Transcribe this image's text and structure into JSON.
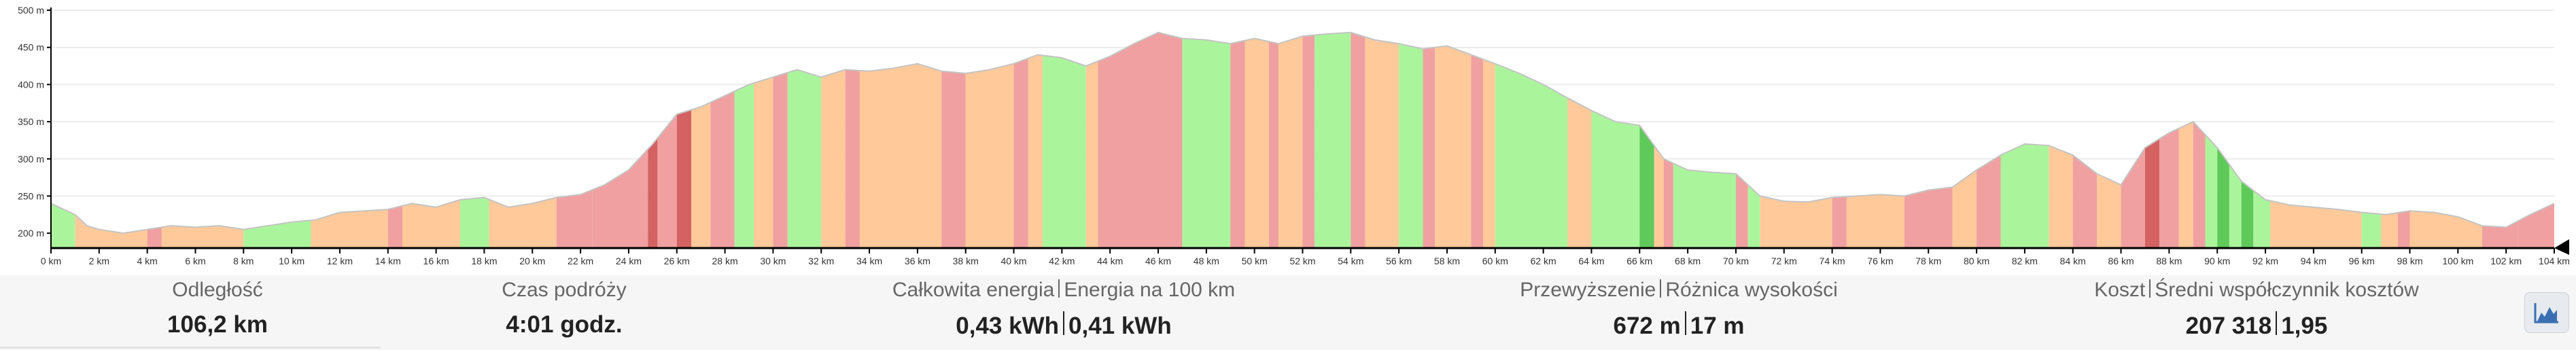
{
  "stats": [
    {
      "label": "Odległość",
      "values": [
        "106,2 km"
      ]
    },
    {
      "label": "Czas podróży",
      "values": [
        "4:01 godz."
      ]
    },
    {
      "label_parts": [
        "Całkowita energia",
        "Energia na 100 km"
      ],
      "values": [
        "0,43 kWh",
        "0,41 kWh"
      ]
    },
    {
      "label_parts": [
        "Przewyższenie",
        "Różnica wysokości"
      ],
      "values": [
        "672 m",
        "17 m"
      ]
    },
    {
      "label_parts": [
        "Koszt",
        "Średni współczynnik kosztów"
      ],
      "values": [
        "207 318",
        "1,95"
      ]
    }
  ],
  "toggle_icon": "elevation-chart-icon",
  "chart_data": {
    "type": "area",
    "x_unit": "km",
    "y_unit": "m",
    "xlim": [
      0,
      104
    ],
    "ylim": [
      180,
      500
    ],
    "x_ticks": [
      0,
      2,
      4,
      6,
      8,
      10,
      12,
      14,
      16,
      18,
      20,
      22,
      24,
      26,
      28,
      30,
      32,
      34,
      36,
      38,
      40,
      42,
      44,
      46,
      48,
      50,
      52,
      54,
      56,
      58,
      60,
      62,
      64,
      66,
      68,
      70,
      72,
      74,
      76,
      78,
      80,
      82,
      84,
      86,
      88,
      90,
      92,
      94,
      96,
      98,
      100,
      102,
      104
    ],
    "y_ticks": [
      200,
      250,
      300,
      350,
      400,
      450,
      500
    ],
    "profile": [
      [
        0,
        240
      ],
      [
        1,
        225
      ],
      [
        1.5,
        210
      ],
      [
        2,
        205
      ],
      [
        3,
        200
      ],
      [
        4,
        205
      ],
      [
        5,
        210
      ],
      [
        6,
        208
      ],
      [
        7,
        210
      ],
      [
        8,
        205
      ],
      [
        9,
        210
      ],
      [
        10,
        215
      ],
      [
        11,
        218
      ],
      [
        12,
        228
      ],
      [
        13,
        230
      ],
      [
        14,
        232
      ],
      [
        15,
        240
      ],
      [
        16,
        235
      ],
      [
        17,
        245
      ],
      [
        18,
        248
      ],
      [
        19,
        235
      ],
      [
        20,
        240
      ],
      [
        21,
        248
      ],
      [
        22,
        252
      ],
      [
        23,
        265
      ],
      [
        24,
        285
      ],
      [
        25,
        320
      ],
      [
        26,
        360
      ],
      [
        27,
        370
      ],
      [
        28,
        385
      ],
      [
        29,
        400
      ],
      [
        30,
        410
      ],
      [
        31,
        420
      ],
      [
        32,
        410
      ],
      [
        33,
        420
      ],
      [
        34,
        418
      ],
      [
        35,
        422
      ],
      [
        36,
        428
      ],
      [
        37,
        418
      ],
      [
        38,
        415
      ],
      [
        39,
        420
      ],
      [
        40,
        428
      ],
      [
        41,
        440
      ],
      [
        42,
        436
      ],
      [
        43,
        425
      ],
      [
        44,
        438
      ],
      [
        45,
        455
      ],
      [
        46,
        470
      ],
      [
        47,
        462
      ],
      [
        48,
        460
      ],
      [
        49,
        455
      ],
      [
        50,
        462
      ],
      [
        51,
        455
      ],
      [
        52,
        465
      ],
      [
        53,
        468
      ],
      [
        54,
        470
      ],
      [
        55,
        460
      ],
      [
        56,
        455
      ],
      [
        57,
        448
      ],
      [
        58,
        452
      ],
      [
        59,
        440
      ],
      [
        60,
        428
      ],
      [
        61,
        415
      ],
      [
        62,
        400
      ],
      [
        63,
        382
      ],
      [
        64,
        365
      ],
      [
        65,
        350
      ],
      [
        66,
        345
      ],
      [
        67,
        300
      ],
      [
        68,
        285
      ],
      [
        69,
        282
      ],
      [
        70,
        280
      ],
      [
        71,
        250
      ],
      [
        72,
        243
      ],
      [
        73,
        242
      ],
      [
        74,
        248
      ],
      [
        75,
        250
      ],
      [
        76,
        252
      ],
      [
        77,
        250
      ],
      [
        78,
        258
      ],
      [
        79,
        262
      ],
      [
        80,
        285
      ],
      [
        81,
        305
      ],
      [
        82,
        320
      ],
      [
        83,
        318
      ],
      [
        84,
        305
      ],
      [
        85,
        280
      ],
      [
        86,
        265
      ],
      [
        87,
        315
      ],
      [
        88,
        335
      ],
      [
        89,
        350
      ],
      [
        90,
        315
      ],
      [
        91,
        270
      ],
      [
        92,
        245
      ],
      [
        93,
        238
      ],
      [
        94,
        235
      ],
      [
        95,
        232
      ],
      [
        96,
        228
      ],
      [
        97,
        225
      ],
      [
        98,
        230
      ],
      [
        99,
        228
      ],
      [
        100,
        222
      ],
      [
        101,
        210
      ],
      [
        102,
        208
      ],
      [
        103,
        225
      ],
      [
        104,
        240
      ]
    ],
    "segments": [
      [
        0,
        1,
        "green"
      ],
      [
        1,
        4,
        "orange"
      ],
      [
        4,
        4.6,
        "red"
      ],
      [
        4.6,
        8,
        "orange"
      ],
      [
        8,
        10.8,
        "green"
      ],
      [
        10.8,
        14,
        "orange"
      ],
      [
        14,
        14.6,
        "red"
      ],
      [
        14.6,
        17,
        "orange"
      ],
      [
        17,
        18.2,
        "green"
      ],
      [
        18.2,
        21,
        "orange"
      ],
      [
        21,
        22.5,
        "red"
      ],
      [
        22.5,
        24.8,
        "red"
      ],
      [
        24.8,
        25.2,
        "dark-red"
      ],
      [
        25.2,
        26,
        "red"
      ],
      [
        26,
        26.6,
        "dark-red"
      ],
      [
        26.6,
        27.4,
        "orange"
      ],
      [
        27.4,
        28.4,
        "red"
      ],
      [
        28.4,
        29.2,
        "green"
      ],
      [
        29.2,
        30,
        "orange"
      ],
      [
        30,
        30.6,
        "red"
      ],
      [
        30.6,
        32,
        "green"
      ],
      [
        32,
        33,
        "orange"
      ],
      [
        33,
        33.6,
        "red"
      ],
      [
        33.6,
        37,
        "orange"
      ],
      [
        37,
        38,
        "red"
      ],
      [
        38,
        40,
        "orange"
      ],
      [
        40,
        40.6,
        "red"
      ],
      [
        40.6,
        41.2,
        "orange"
      ],
      [
        41.2,
        43,
        "green"
      ],
      [
        43,
        43.5,
        "orange"
      ],
      [
        43.5,
        47,
        "red"
      ],
      [
        47,
        49,
        "green"
      ],
      [
        49,
        49.6,
        "red"
      ],
      [
        49.6,
        50.6,
        "orange"
      ],
      [
        50.6,
        51,
        "red"
      ],
      [
        51,
        52,
        "orange"
      ],
      [
        52,
        52.5,
        "red"
      ],
      [
        52.5,
        54,
        "green"
      ],
      [
        54,
        54.6,
        "red"
      ],
      [
        54.6,
        56,
        "orange"
      ],
      [
        56,
        57,
        "green"
      ],
      [
        57,
        57.5,
        "red"
      ],
      [
        57.5,
        59,
        "orange"
      ],
      [
        59,
        59.5,
        "red"
      ],
      [
        59.5,
        60,
        "orange"
      ],
      [
        60,
        63,
        "green"
      ],
      [
        63,
        64,
        "orange"
      ],
      [
        64,
        66,
        "green"
      ],
      [
        66,
        66.6,
        "dark-green"
      ],
      [
        66.6,
        67,
        "orange"
      ],
      [
        67,
        67.4,
        "red"
      ],
      [
        67.4,
        70,
        "green"
      ],
      [
        70,
        70.5,
        "red"
      ],
      [
        70.5,
        71,
        "green"
      ],
      [
        71,
        74,
        "orange"
      ],
      [
        74,
        74.6,
        "red"
      ],
      [
        74.6,
        77,
        "orange"
      ],
      [
        77,
        79,
        "red"
      ],
      [
        79,
        80,
        "orange"
      ],
      [
        80,
        81,
        "red"
      ],
      [
        81,
        83,
        "green"
      ],
      [
        83,
        84,
        "orange"
      ],
      [
        84,
        85,
        "red"
      ],
      [
        85,
        86,
        "orange"
      ],
      [
        86,
        87,
        "red"
      ],
      [
        87,
        87.6,
        "dark-red"
      ],
      [
        87.6,
        88.4,
        "red"
      ],
      [
        88.4,
        89,
        "orange"
      ],
      [
        89,
        89.5,
        "red"
      ],
      [
        89.5,
        90,
        "green"
      ],
      [
        90,
        90.5,
        "dark-green"
      ],
      [
        90.5,
        91,
        "green"
      ],
      [
        91,
        91.5,
        "dark-green"
      ],
      [
        91.5,
        92.2,
        "green"
      ],
      [
        92.2,
        96,
        "orange"
      ],
      [
        96,
        96.8,
        "green"
      ],
      [
        96.8,
        97.5,
        "orange"
      ],
      [
        97.5,
        98,
        "red"
      ],
      [
        98,
        101,
        "orange"
      ],
      [
        101,
        102.5,
        "red"
      ],
      [
        102.5,
        104,
        "red"
      ]
    ],
    "colors": {
      "green": "#aaf59c",
      "dark-green": "#5fc95a",
      "orange": "#ffc99a",
      "red": "#f0a0a0",
      "dark-red": "#d46262",
      "outline": "#c4c4c4",
      "grid": "#ececec",
      "axis": "#000000"
    }
  }
}
